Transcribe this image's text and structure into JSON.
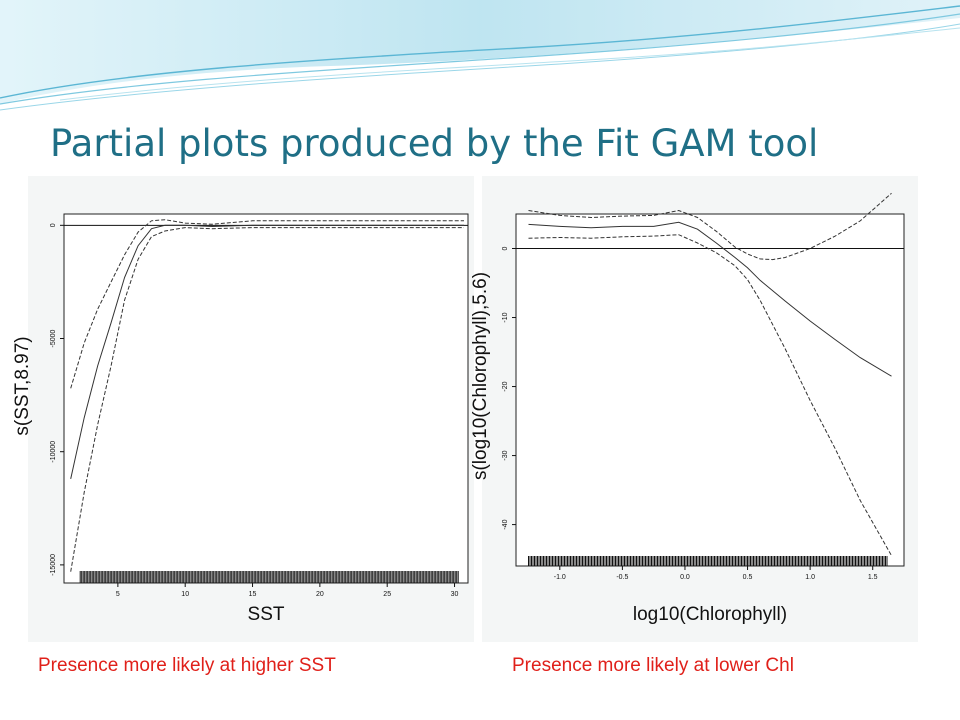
{
  "slide": {
    "title": "Partial plots produced by the Fit GAM tool",
    "accent_color": "#1f6f86",
    "caption_color": "#e0201a"
  },
  "captions": {
    "left": "Presence more likely at higher SST",
    "right": "Presence more likely at lower Chl"
  },
  "chart_data": [
    {
      "type": "line",
      "title": "",
      "xlabel": "SST",
      "ylabel": "s(SST,8.97)",
      "xlim": [
        1,
        31
      ],
      "ylim": [
        -15800,
        500
      ],
      "xticks": [
        5,
        10,
        15,
        20,
        25,
        30
      ],
      "yticks": [
        0,
        -5000,
        -10000,
        -15000
      ],
      "zero_line": true,
      "grid": false,
      "rug": {
        "from": 2.2,
        "to": 30.3,
        "density": "dense"
      },
      "series": [
        {
          "style": "solid",
          "x": [
            1.5,
            2.5,
            3.5,
            4.5,
            5.5,
            6.5,
            7.5,
            8.5,
            10,
            12,
            15,
            20,
            25,
            30.7
          ],
          "y": [
            -11200,
            -8500,
            -6200,
            -4300,
            -2300,
            -900,
            -150,
            0,
            0,
            -50,
            0,
            0,
            0,
            0
          ]
        },
        {
          "style": "dashed",
          "x": [
            1.5,
            2.5,
            3.5,
            4.5,
            5.5,
            6.5,
            7.5,
            8.5,
            10,
            12,
            15,
            20,
            25,
            30.7
          ],
          "y": [
            -7200,
            -5200,
            -3700,
            -2500,
            -1300,
            -300,
            200,
            250,
            100,
            50,
            200,
            200,
            200,
            200
          ]
        },
        {
          "style": "dashed",
          "x": [
            1.5,
            2.5,
            3.5,
            4.5,
            5.5,
            6.5,
            7.5,
            8.5,
            10,
            12,
            15,
            20,
            25,
            30.7
          ],
          "y": [
            -15300,
            -11800,
            -8800,
            -6200,
            -3300,
            -1500,
            -500,
            -250,
            -100,
            -150,
            -100,
            -100,
            -100,
            -100
          ]
        }
      ]
    },
    {
      "type": "line",
      "title": "",
      "xlabel": "log10(Chlorophyll)",
      "ylabel": "s(log10(Chlorophyll),5.6)",
      "xlim": [
        -1.35,
        1.75
      ],
      "ylim": [
        -46,
        5
      ],
      "xticks": [
        -1.0,
        -0.5,
        0.0,
        0.5,
        1.0,
        1.5
      ],
      "xtick_labels": [
        "-1.0",
        "-0.5",
        "0.0",
        "0.5",
        "1.0",
        "1.5"
      ],
      "yticks": [
        0,
        -10,
        -20,
        -30,
        -40
      ],
      "zero_line": true,
      "grid": false,
      "rug": {
        "from": -1.25,
        "to": 1.62,
        "density": "dense"
      },
      "series": [
        {
          "style": "solid",
          "x": [
            -1.25,
            -1.0,
            -0.75,
            -0.5,
            -0.25,
            -0.05,
            0.1,
            0.25,
            0.4,
            0.5,
            0.6,
            0.8,
            1.0,
            1.2,
            1.4,
            1.65
          ],
          "y": [
            3.5,
            3.2,
            3.0,
            3.2,
            3.2,
            3.8,
            2.8,
            0.8,
            -1.3,
            -2.8,
            -4.6,
            -7.6,
            -10.5,
            -13.2,
            -15.8,
            -18.5
          ]
        },
        {
          "style": "dashed",
          "x": [
            -1.25,
            -1.0,
            -0.75,
            -0.5,
            -0.25,
            -0.05,
            0.1,
            0.25,
            0.4,
            0.5,
            0.6,
            0.7,
            0.8,
            1.0,
            1.2,
            1.4,
            1.65
          ],
          "y": [
            5.5,
            4.8,
            4.5,
            4.7,
            4.8,
            5.5,
            4.5,
            2.5,
            0.2,
            -0.8,
            -1.5,
            -1.6,
            -1.3,
            0.0,
            1.8,
            4.0,
            8.0
          ]
        },
        {
          "style": "dashed",
          "x": [
            -1.25,
            -1.0,
            -0.75,
            -0.5,
            -0.25,
            -0.05,
            0.1,
            0.25,
            0.4,
            0.5,
            0.6,
            0.8,
            1.0,
            1.2,
            1.4,
            1.65
          ],
          "y": [
            1.5,
            1.6,
            1.5,
            1.7,
            1.8,
            2.0,
            0.8,
            -0.6,
            -2.5,
            -4.5,
            -7.5,
            -14.5,
            -22.0,
            -29.0,
            -36.5,
            -44.5
          ]
        }
      ]
    }
  ]
}
